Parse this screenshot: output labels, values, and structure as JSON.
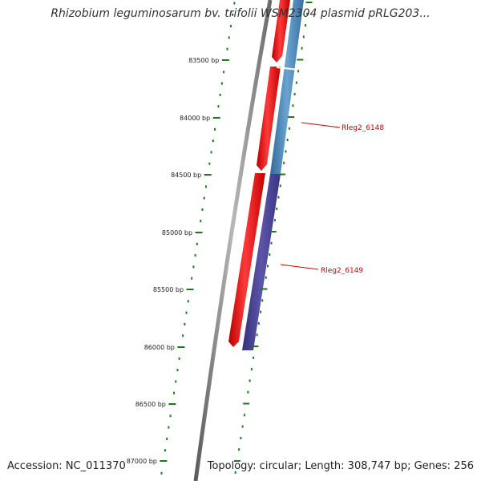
{
  "map": {
    "title": "Rhizobium leguminosarum bv. trifolii WSM2304 plasmid pRLG203...",
    "accession": "Accession: NC_011370",
    "summary": "Topology: circular; Length: 308,747 bp; Genes: 256"
  },
  "ticks": [
    {
      "label": "83500 bp"
    },
    {
      "label": "84000 bp"
    },
    {
      "label": "84500 bp"
    },
    {
      "label": "85000 bp"
    },
    {
      "label": "85500 bp"
    },
    {
      "label": "86000 bp"
    },
    {
      "label": "86500 bp"
    },
    {
      "label": "87000 bp"
    }
  ],
  "genes": [
    {
      "name": "Rleg2_6148"
    },
    {
      "name": "Rleg2_6149"
    }
  ],
  "colors": {
    "backbone": "#888888",
    "forward_feature": "#ee1111",
    "reverse_feature_1": "#4a86b8",
    "reverse_feature_2": "#4a4292",
    "ticks": "#1a7a1a",
    "gene_label": "#cc0000"
  }
}
